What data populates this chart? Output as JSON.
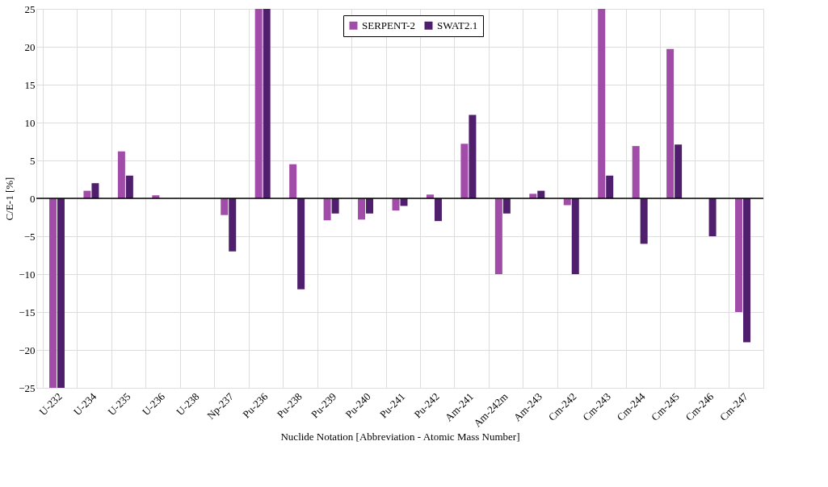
{
  "chart_data": {
    "type": "bar",
    "xlabel": "Nuclide Notation [Abbreviation - Atomic Mass Number]",
    "ylabel": "C/E-1 [%]",
    "categories": [
      "U-232",
      "U-234",
      "U-235",
      "U-236",
      "U-238",
      "Np-237",
      "Pu-236",
      "Pu-238",
      "Pu-239",
      "Pu-240",
      "Pu-241",
      "Pu-242",
      "Am-241",
      "Am-242m",
      "Am-243",
      "Cm-242",
      "Cm-243",
      "Cm-244",
      "Cm-245",
      "Cm-246",
      "Cm-247"
    ],
    "series": [
      {
        "name": "SERPENT-2",
        "color": "#a04ca8",
        "values": [
          -25,
          1.0,
          6.2,
          0.4,
          null,
          -2.2,
          25,
          4.5,
          -2.9,
          -2.8,
          -1.6,
          0.5,
          7.2,
          -10,
          0.6,
          -0.9,
          25,
          6.9,
          19.7,
          null,
          -15
        ]
      },
      {
        "name": "SWAT2.1",
        "color": "#4f1f6e",
        "values": [
          -25,
          2.0,
          3.0,
          null,
          null,
          -7.0,
          25,
          -12,
          -2.0,
          -2.0,
          -1.0,
          -3.0,
          11.0,
          -2.0,
          1.0,
          -10,
          3.0,
          -6.0,
          7.1,
          -5.0,
          -19
        ]
      }
    ],
    "ylim": [
      -25,
      25
    ],
    "yticks": [
      -25,
      -20,
      -15,
      -10,
      -5,
      0,
      5,
      10,
      15,
      20,
      25
    ],
    "grid": true,
    "legend": "top"
  }
}
